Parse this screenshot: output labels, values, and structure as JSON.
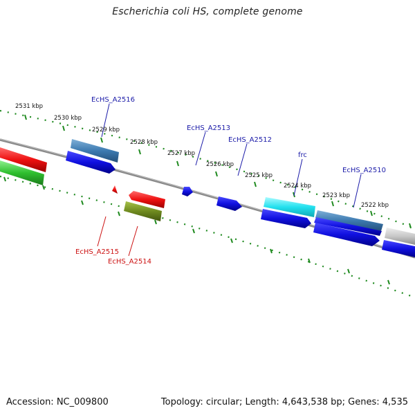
{
  "title": "Escherichia coli HS, complete genome",
  "footer": {
    "accession": "Accession: NC_009800",
    "summary": "Topology: circular; Length: 4,643,538 bp; Genes: 4,535"
  },
  "colors": {
    "backbone": "#777777",
    "ticks": "#1f8a1f",
    "label_forward": "#1a1aa8",
    "label_reverse": "#cc1111",
    "feature_blue": "#1010e0",
    "feature_steelblue": "#3d7ab0",
    "feature_cyan": "#22e0ee",
    "feature_red": "#ee1111",
    "feature_green": "#2fbf2f",
    "feature_olive": "#6f8a1f",
    "feature_grey": "#c8c8c8"
  },
  "scale_labels": [
    "2531 kbp",
    "2530 kbp",
    "2529 kbp",
    "2528 kbp",
    "2527 kbp",
    "2526 kbp",
    "2525 kbp",
    "2524 kbp",
    "2523 kbp",
    "2522 kbp"
  ],
  "gene_labels": {
    "forward": [
      "EcHS_A2516",
      "EcHS_A2513",
      "EcHS_A2512",
      "frc",
      "EcHS_A2510"
    ],
    "reverse": [
      "EcHS_A2515",
      "EcHS_A2514"
    ]
  }
}
